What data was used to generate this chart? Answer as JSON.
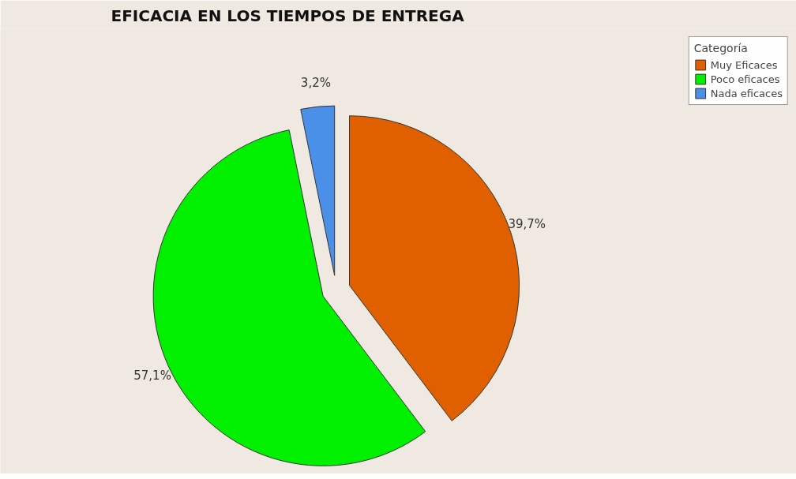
{
  "chart_data": {
    "type": "pie",
    "title": "EFICACIA EN LOS TIEMPOS DE ENTREGA",
    "legend_title": "Categoría",
    "categories": [
      "Muy Eficaces",
      "Poco eficaces",
      "Nada eficaces"
    ],
    "values": [
      39.7,
      57.1,
      3.2
    ],
    "colors": [
      "#e06000",
      "#00f000",
      "#4a90e8"
    ],
    "value_labels": [
      "39,7%",
      "57,1%",
      "3,2%"
    ],
    "legend": "top right"
  }
}
